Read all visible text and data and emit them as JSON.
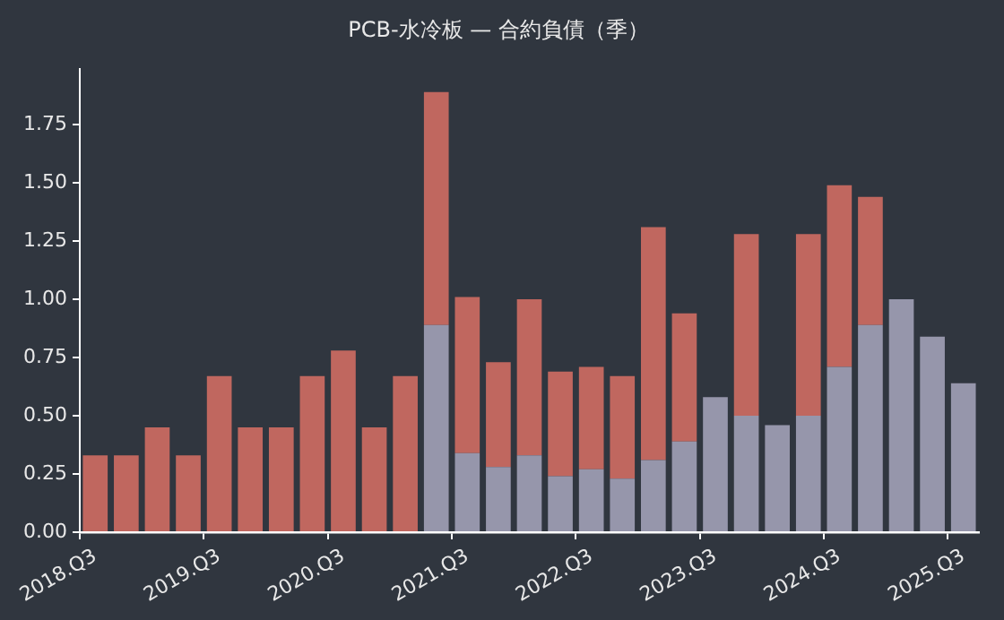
{
  "chart_data": {
    "type": "bar",
    "title": "PCB-水冷板 — 合約負債（季）",
    "stacked": true,
    "legend": false,
    "grid": false,
    "categories": [
      "2018.Q3",
      null,
      null,
      null,
      "2019.Q3",
      null,
      null,
      null,
      "2020.Q3",
      null,
      null,
      null,
      "2021.Q3",
      null,
      null,
      null,
      "2022.Q3",
      null,
      null,
      null,
      "2023.Q3",
      null,
      null,
      null,
      "2024.Q3",
      null,
      null,
      null,
      "2025.Q3"
    ],
    "series": [
      {
        "color": "#9696ab",
        "values": [
          null,
          null,
          null,
          null,
          null,
          null,
          null,
          null,
          null,
          null,
          null,
          0.89,
          0.34,
          0.28,
          0.33,
          0.24,
          0.27,
          0.23,
          0.31,
          0.39,
          0.58,
          0.5,
          0.46,
          0.5,
          0.71,
          0.89,
          1.0,
          0.84,
          0.64
        ]
      },
      {
        "color": "#c0675f",
        "values": [
          0.33,
          0.33,
          0.45,
          0.33,
          0.67,
          0.45,
          0.45,
          0.67,
          0.78,
          0.45,
          0.67,
          1.0,
          0.67,
          0.45,
          0.67,
          0.45,
          0.44,
          0.44,
          1.0,
          0.55,
          null,
          0.78,
          null,
          0.78,
          0.78,
          0.55,
          null,
          null,
          null
        ]
      }
    ],
    "ylim": [
      0,
      1.99
    ],
    "yticks": [
      {
        "value": 0,
        "label": "0.00"
      },
      {
        "value": 0.25,
        "label": "0.25"
      },
      {
        "value": 0.5,
        "label": "0.50"
      },
      {
        "value": 0.75,
        "label": "0.75"
      },
      {
        "value": 1,
        "label": "1.00"
      },
      {
        "value": 1.25,
        "label": "1.25"
      },
      {
        "value": 1.5,
        "label": "1.50"
      },
      {
        "value": 1.75,
        "label": "1.75"
      }
    ]
  }
}
